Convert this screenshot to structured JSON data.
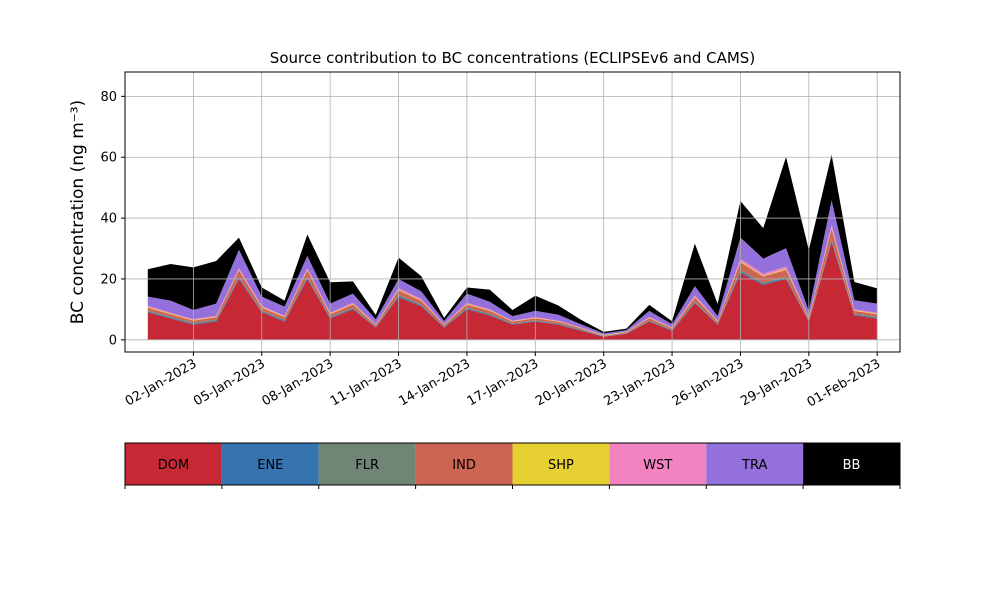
{
  "chart_data": {
    "type": "area",
    "stacked": true,
    "title": "Source contribution to BC concentrations (ECLIPSEv6 and CAMS)",
    "ylabel": "BC concentration (ng m⁻³)",
    "ylim": [
      -4,
      88
    ],
    "xlim": [
      "2022-12-30",
      "2023-02-02"
    ],
    "yticks": [
      0,
      20,
      40,
      60,
      80
    ],
    "xticks": [
      "2023-01-02",
      "2023-01-05",
      "2023-01-08",
      "2023-01-11",
      "2023-01-14",
      "2023-01-17",
      "2023-01-20",
      "2023-01-23",
      "2023-01-26",
      "2023-01-29",
      "2023-02-01"
    ],
    "xtick_labels": [
      "02-Jan-2023",
      "05-Jan-2023",
      "08-Jan-2023",
      "11-Jan-2023",
      "14-Jan-2023",
      "17-Jan-2023",
      "20-Jan-2023",
      "23-Jan-2023",
      "26-Jan-2023",
      "29-Jan-2023",
      "01-Feb-2023"
    ],
    "grid": true,
    "legend_position": "bottom",
    "x": [
      "2022-12-31",
      "2023-01-01",
      "2023-01-02",
      "2023-01-03",
      "2023-01-04",
      "2023-01-05",
      "2023-01-06",
      "2023-01-07",
      "2023-01-08",
      "2023-01-09",
      "2023-01-10",
      "2023-01-11",
      "2023-01-12",
      "2023-01-13",
      "2023-01-14",
      "2023-01-15",
      "2023-01-16",
      "2023-01-17",
      "2023-01-18",
      "2023-01-19",
      "2023-01-20",
      "2023-01-21",
      "2023-01-22",
      "2023-01-23",
      "2023-01-24",
      "2023-01-25",
      "2023-01-26",
      "2023-01-27",
      "2023-01-28",
      "2023-01-29",
      "2023-01-30",
      "2023-01-31",
      "2023-02-01"
    ],
    "series": [
      {
        "name": "DOM",
        "color": "#c62836",
        "values": [
          9,
          7,
          5,
          6,
          20,
          9,
          6,
          20,
          7,
          10,
          4,
          14,
          11,
          4,
          10,
          8,
          5,
          6,
          5,
          3,
          1,
          2,
          6,
          3,
          12,
          5,
          22,
          18,
          20,
          6,
          32,
          8,
          7
        ]
      },
      {
        "name": "ENE",
        "color": "#3674b0",
        "values": [
          0.3,
          0.3,
          0.3,
          0.3,
          0.4,
          0.3,
          0.3,
          0.4,
          0.3,
          0.3,
          0.2,
          0.4,
          0.3,
          0.2,
          0.3,
          0.3,
          0.2,
          0.2,
          0.2,
          0.2,
          0.1,
          0.1,
          0.2,
          0.2,
          0.3,
          0.2,
          0.5,
          0.4,
          0.4,
          0.2,
          0.6,
          0.3,
          0.3
        ]
      },
      {
        "name": "FLR",
        "color": "#6f8575",
        "values": [
          0.3,
          0.3,
          0.3,
          0.3,
          0.4,
          0.3,
          0.3,
          0.4,
          0.3,
          0.3,
          0.2,
          0.4,
          0.3,
          0.2,
          0.3,
          0.3,
          0.2,
          0.2,
          0.2,
          0.2,
          0.1,
          0.1,
          0.2,
          0.2,
          0.3,
          0.2,
          0.5,
          0.4,
          0.4,
          0.2,
          0.6,
          0.3,
          0.3
        ]
      },
      {
        "name": "IND",
        "color": "#cc6552",
        "values": [
          1,
          0.8,
          0.7,
          0.8,
          2,
          1,
          0.8,
          2,
          0.8,
          1,
          0.5,
          1.5,
          1.2,
          0.5,
          1,
          0.9,
          0.6,
          0.7,
          0.6,
          0.4,
          0.2,
          0.3,
          0.7,
          0.4,
          1.3,
          0.6,
          2.5,
          2,
          2.2,
          0.7,
          3.2,
          0.9,
          0.8
        ]
      },
      {
        "name": "SHP",
        "color": "#e7d132",
        "values": [
          0.2,
          0.2,
          0.2,
          0.2,
          0.2,
          0.2,
          0.2,
          0.2,
          0.2,
          0.2,
          0.1,
          0.2,
          0.2,
          0.1,
          0.2,
          0.2,
          0.1,
          0.1,
          0.1,
          0.1,
          0.1,
          0.1,
          0.1,
          0.1,
          0.2,
          0.1,
          0.3,
          0.2,
          0.3,
          0.1,
          0.4,
          0.2,
          0.2
        ]
      },
      {
        "name": "WST",
        "color": "#f283c0",
        "values": [
          0.4,
          0.3,
          0.3,
          0.3,
          0.6,
          0.4,
          0.3,
          0.6,
          0.3,
          0.4,
          0.2,
          0.5,
          0.4,
          0.2,
          0.4,
          0.3,
          0.2,
          0.3,
          0.2,
          0.2,
          0.1,
          0.1,
          0.3,
          0.2,
          0.5,
          0.2,
          0.8,
          0.7,
          0.8,
          0.3,
          1,
          0.3,
          0.3
        ]
      },
      {
        "name": "TRA",
        "color": "#9370db",
        "values": [
          3,
          4,
          3,
          4,
          6,
          3,
          3,
          4,
          3,
          3,
          1.5,
          3,
          2.5,
          1,
          3,
          2.5,
          1.5,
          2,
          2,
          1,
          0.5,
          0.5,
          2,
          1,
          3,
          1.5,
          7,
          5,
          6,
          2,
          8,
          3,
          3
        ]
      },
      {
        "name": "BB",
        "color": "#000000",
        "values": [
          9,
          12,
          14,
          14,
          4,
          3,
          2,
          7,
          7,
          4,
          1.5,
          7,
          5,
          1,
          2,
          4,
          2,
          5,
          3,
          1.5,
          0.5,
          0.5,
          2,
          1,
          14,
          4,
          12,
          10,
          30,
          20,
          15,
          6,
          5
        ]
      }
    ]
  }
}
